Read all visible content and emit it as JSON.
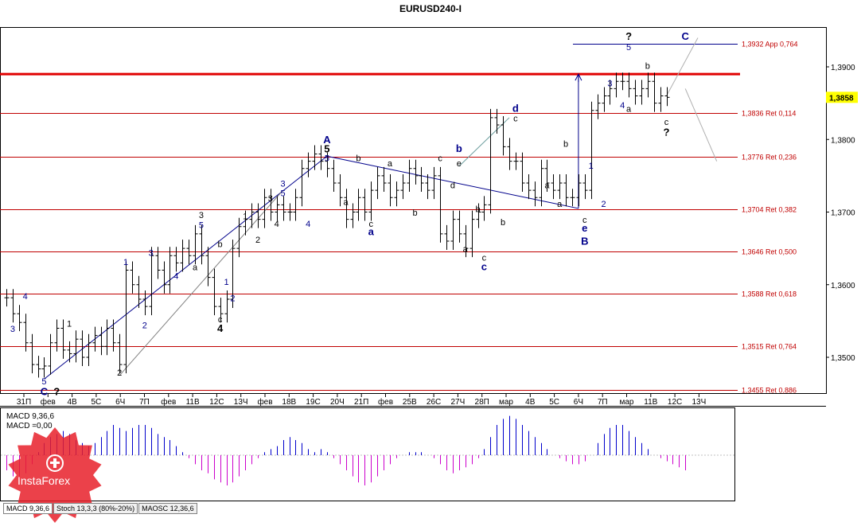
{
  "title": "EURUSD240-I",
  "price_axis": {
    "ticks": [
      "1,3900",
      "1,3800",
      "1,3700",
      "1,3600",
      "1,3500"
    ],
    "current_price": "1,3858",
    "current_price_bg": "#ffff00"
  },
  "time_axis": [
    "31П",
    "фев",
    "4В",
    "5С",
    "6Ч",
    "7П",
    "фев",
    "11В",
    "12С",
    "13Ч",
    "фев",
    "18В",
    "19С",
    "20Ч",
    "21П",
    "фев",
    "25В",
    "26С",
    "27Ч",
    "28П",
    "мар",
    "4В",
    "5С",
    "6Ч",
    "7П",
    "мар",
    "11В",
    "12С",
    "13Ч"
  ],
  "fib_levels": [
    {
      "label": "1,3932 App 0,764",
      "price": 1.3932,
      "color": "#00008b"
    },
    {
      "label": "1,3836 Ret 0,114",
      "price": 1.3836,
      "color": "#c00000"
    },
    {
      "label": "1,3776 Ret 0,236",
      "price": 1.3776,
      "color": "#c00000"
    },
    {
      "label": "1,3704 Ret 0,382",
      "price": 1.3704,
      "color": "#c00000"
    },
    {
      "label": "1,3646 Ret 0,500",
      "price": 1.3646,
      "color": "#c00000"
    },
    {
      "label": "1,3588 Ret 0,618",
      "price": 1.3588,
      "color": "#c00000"
    },
    {
      "label": "1,3515 Ret 0,764",
      "price": 1.3515,
      "color": "#c00000"
    },
    {
      "label": "1,3455 Ret 0,886",
      "price": 1.3455,
      "color": "#c00000"
    }
  ],
  "resistance_line": {
    "price": 1.389,
    "color": "#e00000"
  },
  "chart_data": {
    "type": "ohlc",
    "symbol": "EURUSD240-I",
    "ylim": [
      1.3445,
      1.397
    ],
    "close_series": [
      1.3582,
      1.356,
      1.3548,
      1.352,
      1.349,
      1.3484,
      1.3488,
      1.352,
      1.354,
      1.351,
      1.3505,
      1.3525,
      1.35,
      1.352,
      1.353,
      1.3515,
      1.354,
      1.352,
      1.349,
      1.362,
      1.36,
      1.358,
      1.357,
      1.364,
      1.362,
      1.36,
      1.364,
      1.363,
      1.365,
      1.364,
      1.367,
      1.364,
      1.361,
      1.357,
      1.356,
      1.358,
      1.365,
      1.368,
      1.369,
      1.37,
      1.369,
      1.372,
      1.37,
      1.371,
      1.37,
      1.37,
      1.372,
      1.376,
      1.377,
      1.378,
      1.377,
      1.376,
      1.374,
      1.372,
      1.369,
      1.37,
      1.372,
      1.37,
      1.373,
      1.375,
      1.374,
      1.372,
      1.373,
      1.374,
      1.376,
      1.375,
      1.374,
      1.373,
      1.375,
      1.367,
      1.366,
      1.369,
      1.367,
      1.365,
      1.369,
      1.37,
      1.371,
      1.383,
      1.382,
      1.379,
      1.377,
      1.377,
      1.374,
      1.373,
      1.372,
      1.376,
      1.374,
      1.373,
      1.374,
      1.372,
      1.372,
      1.374,
      1.373,
      1.384,
      1.385,
      1.386,
      1.387,
      1.388,
      1.388,
      1.387,
      1.386,
      1.387,
      1.388,
      1.385,
      1.386,
      1.3858
    ],
    "wave_labels": [
      {
        "t": "4",
        "i": 3,
        "p": 1.358,
        "c": "#00008b"
      },
      {
        "t": "3",
        "i": 1,
        "p": 1.3535,
        "c": "#00008b"
      },
      {
        "t": "5",
        "i": 6,
        "p": 1.3463,
        "c": "#00008b"
      },
      {
        "t": "C",
        "i": 6,
        "p": 1.3448,
        "c": "#00008b",
        "b": true
      },
      {
        "t": "?",
        "i": 8,
        "p": 1.3448,
        "c": "#000000",
        "b": true
      },
      {
        "t": "1",
        "i": 10,
        "p": 1.3542,
        "c": "#000000"
      },
      {
        "t": "2",
        "i": 18,
        "p": 1.3475,
        "c": "#000000"
      },
      {
        "t": "1",
        "i": 19,
        "p": 1.3627,
        "c": "#00008b"
      },
      {
        "t": "2",
        "i": 22,
        "p": 1.354,
        "c": "#00008b"
      },
      {
        "t": "3",
        "i": 23,
        "p": 1.364,
        "c": "#00008b"
      },
      {
        "t": "4",
        "i": 27,
        "p": 1.3608,
        "c": "#00008b"
      },
      {
        "t": "3",
        "i": 31,
        "p": 1.3692,
        "c": "#000000"
      },
      {
        "t": "5",
        "i": 31,
        "p": 1.3678,
        "c": "#00008b"
      },
      {
        "t": "a",
        "i": 30,
        "p": 1.362,
        "c": "#000000"
      },
      {
        "t": "b",
        "i": 34,
        "p": 1.3652,
        "c": "#000000"
      },
      {
        "t": "c",
        "i": 34,
        "p": 1.3548,
        "c": "#000000"
      },
      {
        "t": "4",
        "i": 34,
        "p": 1.3535,
        "c": "#000000",
        "b": true
      },
      {
        "t": "1",
        "i": 35,
        "p": 1.36,
        "c": "#00008b"
      },
      {
        "t": "2",
        "i": 36,
        "p": 1.3577,
        "c": "#00008b"
      },
      {
        "t": "1",
        "i": 38,
        "p": 1.369,
        "c": "#000000"
      },
      {
        "t": "2",
        "i": 40,
        "p": 1.3658,
        "c": "#000000"
      },
      {
        "t": "3",
        "i": 42,
        "p": 1.3715,
        "c": "#000000"
      },
      {
        "t": "4",
        "i": 43,
        "p": 1.368,
        "c": "#000000"
      },
      {
        "t": "3",
        "i": 44,
        "p": 1.3735,
        "c": "#00008b"
      },
      {
        "t": "5",
        "i": 44,
        "p": 1.3722,
        "c": "#00008b"
      },
      {
        "t": "4",
        "i": 48,
        "p": 1.368,
        "c": "#00008b"
      },
      {
        "t": "A",
        "i": 51,
        "p": 1.3795,
        "c": "#00008b",
        "b": true
      },
      {
        "t": "5",
        "i": 51,
        "p": 1.3782,
        "c": "#000000",
        "b": true
      },
      {
        "t": "5",
        "i": 51,
        "p": 1.377,
        "c": "#00008b"
      },
      {
        "t": "a",
        "i": 54,
        "p": 1.371,
        "c": "#000000"
      },
      {
        "t": "b",
        "i": 56,
        "p": 1.377,
        "c": "#000000"
      },
      {
        "t": "c",
        "i": 58,
        "p": 1.368,
        "c": "#000000"
      },
      {
        "t": "a",
        "i": 58,
        "p": 1.3668,
        "c": "#00008b",
        "b": true
      },
      {
        "t": "a",
        "i": 61,
        "p": 1.3763,
        "c": "#000000"
      },
      {
        "t": "b",
        "i": 65,
        "p": 1.3695,
        "c": "#000000"
      },
      {
        "t": "c",
        "i": 69,
        "p": 1.377,
        "c": "#000000"
      },
      {
        "t": "b",
        "i": 72,
        "p": 1.3783,
        "c": "#00008b",
        "b": true
      },
      {
        "t": "e",
        "i": 72,
        "p": 1.3763,
        "c": "#000000"
      },
      {
        "t": "d",
        "i": 71,
        "p": 1.3733,
        "c": "#000000"
      },
      {
        "t": "a",
        "i": 73,
        "p": 1.3645,
        "c": "#000000"
      },
      {
        "t": "b",
        "i": 75,
        "p": 1.37,
        "c": "#000000"
      },
      {
        "t": "c",
        "i": 76,
        "p": 1.3633,
        "c": "#000000"
      },
      {
        "t": "c",
        "i": 76,
        "p": 1.362,
        "c": "#00008b",
        "b": true
      },
      {
        "t": "b",
        "i": 79,
        "p": 1.3682,
        "c": "#000000"
      },
      {
        "t": "c",
        "i": 81,
        "p": 1.3825,
        "c": "#000000"
      },
      {
        "t": "d",
        "i": 81,
        "p": 1.3838,
        "c": "#00008b",
        "b": true
      },
      {
        "t": "a",
        "i": 86,
        "p": 1.3733,
        "c": "#000000"
      },
      {
        "t": "a",
        "i": 88,
        "p": 1.3707,
        "c": "#000000"
      },
      {
        "t": "b",
        "i": 89,
        "p": 1.379,
        "c": "#000000"
      },
      {
        "t": "1",
        "i": 93,
        "p": 1.376,
        "c": "#00008b"
      },
      {
        "t": "c",
        "i": 92,
        "p": 1.3685,
        "c": "#000000"
      },
      {
        "t": "e",
        "i": 92,
        "p": 1.3673,
        "c": "#00008b",
        "b": true
      },
      {
        "t": "B",
        "i": 92,
        "p": 1.3655,
        "c": "#00008b",
        "b": true
      },
      {
        "t": "2",
        "i": 95,
        "p": 1.3707,
        "c": "#00008b"
      },
      {
        "t": "3",
        "i": 96,
        "p": 1.3873,
        "c": "#00008b"
      },
      {
        "t": "4",
        "i": 98,
        "p": 1.3843,
        "c": "#00008b"
      },
      {
        "t": "a",
        "i": 99,
        "p": 1.3838,
        "c": "#000000"
      },
      {
        "t": "?",
        "i": 99,
        "p": 1.3937,
        "c": "#000000",
        "b": true
      },
      {
        "t": "5",
        "i": 99,
        "p": 1.3923,
        "c": "#00008b"
      },
      {
        "t": "b",
        "i": 102,
        "p": 1.3897,
        "c": "#000000"
      },
      {
        "t": "C",
        "i": 108,
        "p": 1.3937,
        "c": "#00008b",
        "b": true
      },
      {
        "t": "c",
        "i": 105,
        "p": 1.382,
        "c": "#000000"
      },
      {
        "t": "?",
        "i": 105,
        "p": 1.3805,
        "c": "#000000",
        "b": true
      }
    ]
  },
  "indicator": {
    "label1": "MACD 9,36,6",
    "label2": "MACD =0,00",
    "positive_color": "#0000cc",
    "negative_color": "#cc00cc",
    "macd_values": [
      -0.5,
      -0.7,
      -0.8,
      -0.6,
      -0.3,
      0.1,
      0.4,
      0.6,
      0.7,
      0.8,
      0.7,
      0.5,
      0.4,
      0.3,
      0.4,
      0.6,
      0.8,
      1.0,
      0.9,
      0.8,
      0.9,
      1.0,
      1.0,
      0.9,
      0.7,
      0.6,
      0.5,
      0.3,
      0.1,
      -0.1,
      -0.3,
      -0.5,
      -0.6,
      -0.8,
      -0.9,
      -1.0,
      -0.9,
      -0.7,
      -0.5,
      -0.3,
      -0.1,
      0.1,
      0.2,
      0.3,
      0.5,
      0.6,
      0.5,
      0.4,
      0.2,
      0.1,
      0.2,
      0.1,
      -0.1,
      -0.3,
      -0.5,
      -0.7,
      -0.9,
      -1.0,
      -0.9,
      -0.7,
      -0.5,
      -0.3,
      -0.1,
      0.0,
      0.1,
      0.1,
      0.1,
      0.0,
      -0.1,
      -0.3,
      -0.5,
      -0.6,
      -0.5,
      -0.4,
      -0.3,
      -0.1,
      0.2,
      0.6,
      1.0,
      1.2,
      1.3,
      1.2,
      1.0,
      0.8,
      0.6,
      0.4,
      0.2,
      0.0,
      -0.1,
      -0.2,
      -0.3,
      -0.3,
      -0.2,
      0.0,
      0.4,
      0.7,
      0.9,
      1.0,
      1.0,
      0.8,
      0.6,
      0.4,
      0.2,
      0.0,
      -0.1,
      -0.2,
      -0.3,
      -0.4,
      -0.5
    ]
  },
  "tabs": [
    {
      "label": "MACD 9,36,6",
      "active": true
    },
    {
      "label": "Stoch 13,3,3 (80%-20%)",
      "active": false
    },
    {
      "label": "MAOSC 12,36,6",
      "active": false
    }
  ],
  "logo": {
    "text": "InstaForex",
    "color": "#e8202a"
  }
}
